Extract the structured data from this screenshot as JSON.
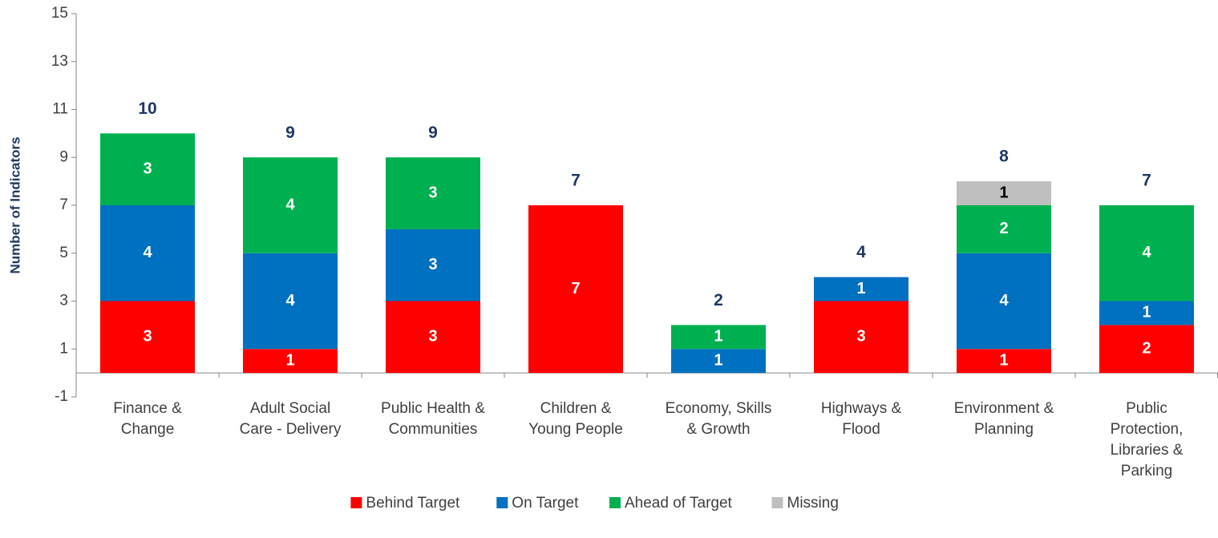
{
  "chart_data": {
    "type": "stacked_bar",
    "y_axis_label": "Number of Indicators",
    "categories": [
      "Finance  &\nChange",
      "Adult Social\nCare - Delivery",
      "Public Health &\nCommunities",
      "Children &\nYoung People",
      "Economy, Skills\n& Growth",
      "Highways &\nFlood",
      "Environment &\nPlanning",
      "Public\nProtection,\nLibraries &\nParking"
    ],
    "series": [
      {
        "name": "Behind Target",
        "color": "#ff0000",
        "label_color": "#ffffff",
        "values": [
          3,
          1,
          3,
          7,
          0,
          3,
          1,
          2
        ]
      },
      {
        "name": "On Target",
        "color": "#0070c0",
        "label_color": "#ffffff",
        "values": [
          4,
          4,
          3,
          0,
          1,
          1,
          4,
          1
        ]
      },
      {
        "name": "Ahead of Target",
        "color": "#00b050",
        "label_color": "#ffffff",
        "values": [
          3,
          4,
          3,
          0,
          1,
          0,
          2,
          4
        ]
      },
      {
        "name": "Missing",
        "color": "#bfbfbf",
        "label_color": "#000000",
        "values": [
          0,
          0,
          0,
          0,
          0,
          0,
          1,
          0
        ]
      }
    ],
    "totals": [
      10,
      9,
      9,
      7,
      2,
      4,
      8,
      7
    ],
    "ylim": [
      -1,
      15
    ],
    "yticks": [
      -1,
      1,
      3,
      5,
      7,
      9,
      11,
      13,
      15
    ],
    "legend": "bottom"
  }
}
